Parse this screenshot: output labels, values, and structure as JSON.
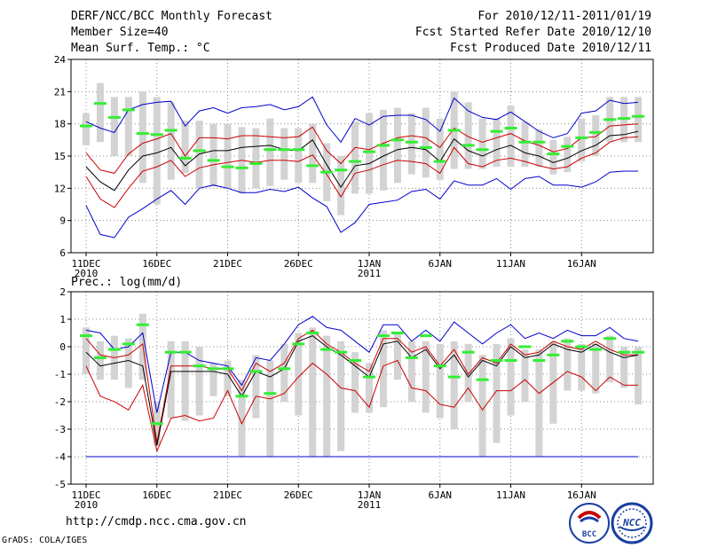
{
  "header": {
    "left": [
      "DERF/NCC/BCC Monthly Forecast",
      "Member Size=40",
      "Mean Surf. Temp.: °C"
    ],
    "right": [
      "For 2010/12/11-2011/01/19",
      "Fcst Started Refer Date 2010/12/10",
      "Fcst Produced Date 2010/12/11"
    ]
  },
  "footer": {
    "url": "http://cmdp.ncc.cma.gov.cn",
    "credit": "GrADS: COLA/IGES"
  },
  "logos": {
    "bcc_text": "BCC",
    "ncc_text": "NCC"
  },
  "colors": {
    "band": "#d3d3d3",
    "mean": "#000000",
    "sd": "#cc0000",
    "extreme": "#0000cc",
    "obs": "#33ee33",
    "grid": "#888888"
  },
  "chart_data": [
    {
      "type": "line",
      "title": "Mean Surf. Temp.: °C",
      "xlabel": "",
      "ylabel": "",
      "ylim": [
        6,
        24
      ],
      "yticks": [
        "6",
        "9",
        "12",
        "15",
        "18",
        "21",
        "24"
      ],
      "xticks": [
        "11DEC",
        "16DEC",
        "21DEC",
        "26DEC",
        "1JAN",
        "6JAN",
        "11JAN",
        "16JAN"
      ],
      "xtick_sublabels": [
        "2010",
        "",
        "",
        "",
        "2011",
        "",
        "",
        ""
      ],
      "x": [
        1,
        2,
        3,
        4,
        5,
        6,
        7,
        8,
        9,
        10,
        11,
        12,
        13,
        14,
        15,
        16,
        17,
        18,
        19,
        20,
        21,
        22,
        23,
        24,
        25,
        26,
        27,
        28,
        29,
        30,
        31,
        32,
        33,
        34,
        35,
        36,
        37,
        38,
        39,
        40
      ],
      "series": [
        {
          "name": "max",
          "values": [
            18.2,
            17.6,
            17.2,
            19.3,
            19.8,
            20.0,
            20.1,
            17.8,
            19.2,
            19.5,
            19.0,
            19.5,
            19.6,
            19.8,
            19.3,
            19.6,
            20.5,
            17.9,
            16.3,
            18.5,
            17.9,
            18.7,
            18.8,
            18.8,
            18.4,
            17.3,
            20.4,
            19.2,
            18.6,
            18.4,
            19.1,
            18.2,
            17.3,
            16.7,
            17.1,
            19.0,
            19.2,
            20.2,
            19.9,
            20.0
          ]
        },
        {
          "name": "plus-sd",
          "values": [
            15.3,
            13.7,
            13.4,
            15.2,
            16.2,
            16.6,
            17.1,
            15.0,
            16.7,
            16.7,
            16.6,
            16.9,
            16.9,
            16.8,
            16.7,
            16.8,
            17.7,
            15.5,
            14.3,
            15.8,
            15.6,
            16.2,
            16.7,
            16.9,
            16.7,
            15.8,
            17.6,
            16.8,
            16.3,
            16.7,
            17.1,
            16.4,
            16.0,
            15.4,
            15.7,
            16.7,
            16.8,
            17.8,
            17.9,
            18.0
          ]
        },
        {
          "name": "mean",
          "values": [
            14.0,
            12.6,
            11.8,
            13.7,
            15.0,
            15.3,
            15.8,
            14.1,
            15.2,
            15.5,
            15.5,
            15.8,
            15.9,
            16.0,
            15.6,
            15.5,
            16.5,
            14.2,
            12.1,
            14.1,
            14.3,
            15.0,
            15.6,
            15.8,
            15.6,
            14.5,
            16.6,
            15.5,
            15.0,
            15.6,
            16.0,
            15.3,
            15.0,
            14.4,
            14.8,
            15.5,
            16.0,
            16.9,
            17.0,
            17.3
          ]
        },
        {
          "name": "minus-sd",
          "values": [
            13.1,
            11.0,
            10.2,
            12.0,
            13.6,
            14.0,
            14.6,
            13.1,
            13.9,
            14.2,
            14.4,
            14.6,
            14.4,
            14.6,
            14.6,
            14.5,
            15.1,
            13.3,
            11.2,
            13.4,
            13.7,
            14.2,
            14.6,
            14.5,
            14.3,
            13.4,
            15.8,
            14.3,
            14.0,
            14.6,
            14.8,
            14.5,
            14.1,
            13.8,
            14.0,
            14.8,
            15.3,
            16.3,
            16.7,
            16.8
          ]
        },
        {
          "name": "min",
          "values": [
            10.4,
            7.7,
            7.4,
            9.3,
            10.1,
            11.0,
            11.8,
            10.5,
            12.0,
            12.3,
            12.0,
            11.6,
            11.6,
            11.9,
            11.7,
            12.1,
            11.1,
            10.3,
            7.9,
            8.8,
            10.5,
            10.7,
            10.9,
            11.7,
            11.9,
            11.0,
            12.7,
            12.3,
            12.3,
            12.9,
            11.9,
            12.9,
            13.1,
            12.3,
            12.3,
            12.1,
            12.6,
            13.5,
            13.6,
            13.6
          ]
        },
        {
          "name": "band-top",
          "values": [
            19.0,
            21.8,
            20.5,
            20.5,
            21.0,
            20.5,
            20.0,
            18.3,
            18.3,
            18.0,
            18.0,
            17.7,
            17.6,
            18.5,
            17.6,
            17.6,
            18.0,
            16.2,
            15.0,
            18.2,
            19.0,
            19.3,
            19.5,
            19.0,
            19.5,
            18.5,
            21.0,
            20.0,
            18.5,
            18.5,
            19.7,
            18.2,
            17.5,
            16.5,
            16.8,
            18.5,
            18.8,
            20.5,
            20.5,
            20.5
          ]
        },
        {
          "name": "band-bottom",
          "values": [
            16.0,
            16.3,
            15.0,
            15.0,
            12.5,
            10.5,
            12.8,
            13.4,
            12.0,
            12.2,
            12.0,
            11.5,
            12.0,
            12.2,
            12.8,
            12.5,
            12.5,
            10.8,
            9.5,
            11.5,
            11.5,
            11.8,
            12.5,
            13.3,
            13.0,
            12.8,
            13.8,
            13.8,
            13.8,
            14.0,
            14.0,
            14.0,
            14.0,
            13.3,
            13.5,
            14.5,
            15.0,
            16.3,
            16.3,
            16.3
          ]
        },
        {
          "name": "observed",
          "values": [
            17.8,
            19.9,
            18.6,
            19.3,
            17.1,
            17.0,
            17.4,
            14.8,
            15.5,
            14.6,
            14.0,
            13.9,
            14.3,
            15.6,
            15.6,
            15.6,
            14.1,
            13.5,
            13.7,
            14.5,
            15.4,
            16.0,
            16.5,
            16.3,
            15.8,
            14.5,
            17.4,
            16.0,
            15.6,
            17.3,
            17.6,
            16.3,
            16.3,
            15.2,
            15.9,
            16.7,
            17.2,
            18.4,
            18.5,
            18.7
          ]
        }
      ]
    },
    {
      "type": "line",
      "title": "Prec.: log(mm/d)",
      "xlabel": "",
      "ylabel": "",
      "ylim": [
        -5,
        2
      ],
      "yticks": [
        "-5",
        "-4",
        "-3",
        "-2",
        "-1",
        "0",
        "1",
        "2"
      ],
      "xticks": [
        "11DEC",
        "16DEC",
        "21DEC",
        "26DEC",
        "1JAN",
        "6JAN",
        "11JAN",
        "16JAN"
      ],
      "xtick_sublabels": [
        "2010",
        "",
        "",
        "",
        "2011",
        "",
        "",
        ""
      ],
      "x": [
        1,
        2,
        3,
        4,
        5,
        6,
        7,
        8,
        9,
        10,
        11,
        12,
        13,
        14,
        15,
        16,
        17,
        18,
        19,
        20,
        21,
        22,
        23,
        24,
        25,
        26,
        27,
        28,
        29,
        30,
        31,
        32,
        33,
        34,
        35,
        36,
        37,
        38,
        39,
        40
      ],
      "series": [
        {
          "name": "max",
          "values": [
            0.6,
            0.5,
            -0.1,
            0.0,
            0.5,
            -2.4,
            -0.2,
            -0.2,
            -0.5,
            -0.6,
            -0.7,
            -1.4,
            -0.4,
            -0.5,
            0.1,
            0.8,
            1.1,
            0.7,
            0.6,
            0.2,
            -0.2,
            0.8,
            0.8,
            0.2,
            0.6,
            0.2,
            0.9,
            0.5,
            0.1,
            0.5,
            0.8,
            0.3,
            0.5,
            0.3,
            0.6,
            0.4,
            0.4,
            0.7,
            0.3,
            0.2
          ]
        },
        {
          "name": "plus-sd",
          "values": [
            0.3,
            -0.3,
            -0.4,
            -0.3,
            0.1,
            -3.5,
            -0.7,
            -0.7,
            -0.7,
            -0.8,
            -0.8,
            -1.6,
            -0.6,
            -0.9,
            -0.6,
            0.3,
            0.6,
            0.1,
            -0.2,
            -0.6,
            -0.9,
            0.3,
            0.3,
            -0.2,
            0.0,
            -0.7,
            -0.1,
            -1.0,
            -0.4,
            -0.6,
            0.1,
            -0.3,
            -0.2,
            0.2,
            0.0,
            -0.1,
            0.2,
            -0.1,
            -0.3,
            -0.3
          ]
        },
        {
          "name": "mean",
          "values": [
            -0.2,
            -0.7,
            -0.6,
            -0.5,
            -0.7,
            -3.6,
            -0.9,
            -0.9,
            -0.9,
            -0.9,
            -1.0,
            -1.8,
            -0.9,
            -1.1,
            -0.8,
            0.2,
            0.4,
            0.0,
            -0.3,
            -0.7,
            -1.1,
            0.1,
            0.2,
            -0.4,
            -0.1,
            -0.8,
            -0.3,
            -1.1,
            -0.5,
            -0.7,
            0.0,
            -0.4,
            -0.3,
            0.1,
            -0.1,
            -0.2,
            0.1,
            -0.2,
            -0.4,
            -0.3
          ]
        },
        {
          "name": "minus-sd",
          "values": [
            -0.7,
            -1.8,
            -2.0,
            -2.3,
            -1.4,
            -3.8,
            -2.6,
            -2.5,
            -2.7,
            -2.6,
            -1.6,
            -2.8,
            -1.8,
            -1.9,
            -1.7,
            -1.1,
            -0.6,
            -1.0,
            -1.5,
            -1.6,
            -2.2,
            -0.7,
            -0.5,
            -1.5,
            -1.6,
            -2.1,
            -2.2,
            -1.5,
            -2.3,
            -1.6,
            -1.6,
            -1.2,
            -1.7,
            -1.3,
            -0.9,
            -1.1,
            -1.6,
            -1.1,
            -1.4,
            -1.4
          ]
        },
        {
          "name": "min",
          "values": [
            -4.0,
            -4.0,
            -4.0,
            -4.0,
            -4.0,
            -4.0,
            -4.0,
            -4.0,
            -4.0,
            -4.0,
            -4.0,
            -4.0,
            -4.0,
            -4.0,
            -4.0,
            -4.0,
            -4.0,
            -4.0,
            -4.0,
            -4.0,
            -4.0,
            -4.0,
            -4.0,
            -4.0,
            -4.0,
            -4.0,
            -4.0,
            -4.0,
            -4.0,
            -4.0,
            -4.0,
            -4.0,
            -4.0,
            -4.0,
            -4.0,
            -4.0,
            -4.0,
            -4.0,
            -4.0,
            -4.0
          ]
        },
        {
          "name": "band-top",
          "values": [
            0.7,
            0.2,
            0.4,
            0.3,
            1.2,
            -2.0,
            0.2,
            0.2,
            0.0,
            -0.6,
            -0.5,
            -1.2,
            -0.3,
            -0.5,
            0.1,
            0.5,
            0.7,
            0.4,
            0.2,
            -0.2,
            -0.6,
            0.6,
            0.5,
            0.2,
            0.2,
            0.1,
            0.2,
            0.1,
            -0.3,
            0.1,
            0.3,
            -0.1,
            -0.1,
            0.2,
            0.3,
            0.1,
            0.1,
            0.4,
            0.0,
            0.0
          ]
        },
        {
          "name": "band-bottom",
          "values": [
            -1.0,
            -1.2,
            -1.2,
            -1.5,
            -1.2,
            -3.6,
            -2.6,
            -2.7,
            -2.5,
            -1.8,
            -1.8,
            -4.0,
            -2.6,
            -4.0,
            -2.0,
            -2.5,
            -4.0,
            -4.0,
            -3.8,
            -2.4,
            -2.4,
            -2.2,
            -1.2,
            -2.0,
            -2.4,
            -2.6,
            -3.0,
            -2.0,
            -4.0,
            -3.5,
            -2.5,
            -2.0,
            -4.0,
            -2.8,
            -1.6,
            -1.6,
            -1.7,
            -1.3,
            -1.5,
            -2.1
          ]
        },
        {
          "name": "observed",
          "values": [
            0.4,
            -0.4,
            -0.1,
            0.1,
            0.8,
            -2.8,
            -0.2,
            -0.2,
            -0.7,
            -0.8,
            -0.8,
            -1.8,
            -0.9,
            -1.7,
            -0.8,
            0.1,
            0.5,
            -0.1,
            -0.2,
            -0.5,
            -1.1,
            0.4,
            0.5,
            -0.4,
            0.4,
            -0.7,
            -1.1,
            -0.2,
            -1.2,
            -0.5,
            -0.5,
            0.0,
            -0.5,
            -0.3,
            0.2,
            0.0,
            -0.1,
            0.3,
            -0.2,
            -0.2
          ]
        }
      ]
    }
  ]
}
